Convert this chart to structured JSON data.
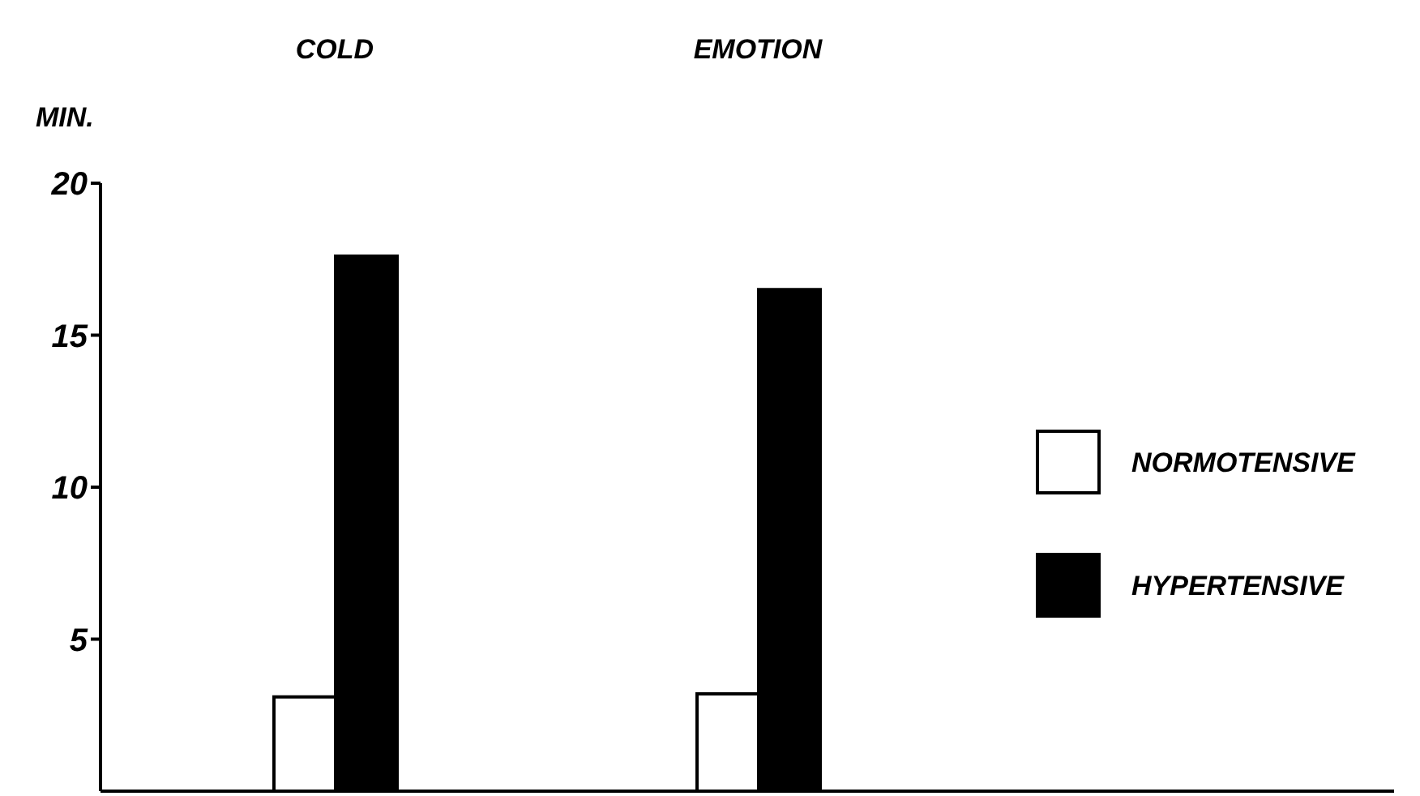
{
  "chart_data": {
    "type": "bar",
    "categories": [
      "COLD",
      "EMOTION"
    ],
    "ylabel": "MIN.",
    "ylim": [
      0,
      20
    ],
    "yticks": [
      5,
      10,
      15,
      20
    ],
    "legend": "right",
    "grid": false,
    "series": [
      {
        "name": "NORMOTENSIVE",
        "color": "#ffffff",
        "values": [
          3.1,
          3.2
        ]
      },
      {
        "name": "HYPERTENSIVE",
        "color": "#000000",
        "values": [
          17.6,
          16.5
        ]
      }
    ]
  }
}
